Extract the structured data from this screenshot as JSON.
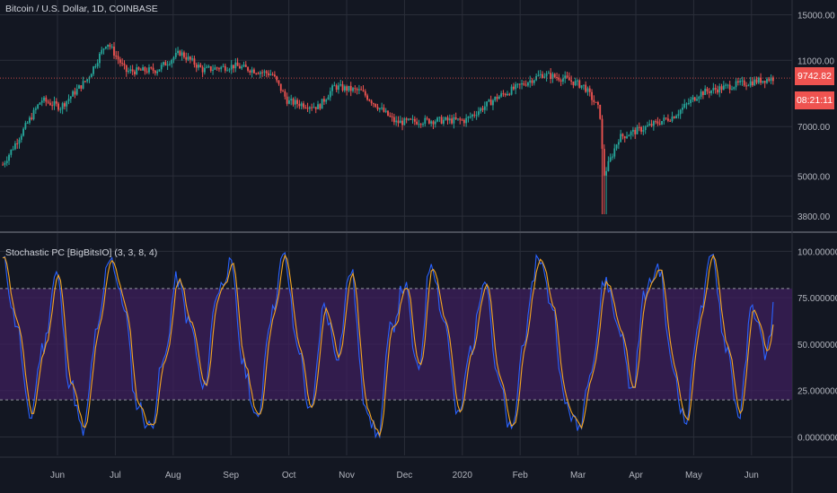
{
  "colors": {
    "background": "#131722",
    "grid": "#2a2e39",
    "text": "#b2b5be",
    "up": "#26a69a",
    "down": "#ef5350",
    "k_line": "#2962ff",
    "d_line": "#f5a623",
    "band_fill": "#3d1f5c",
    "badge": "#ef5350"
  },
  "price_panel": {
    "title": "Bitcoin / U.S. Dollar, 1D, COINBASE",
    "last_price": "9742.82",
    "countdown": "08:21:11"
  },
  "indicator_panel": {
    "title": "Stochastic PC [BigBitsIO] (3, 3, 8, 4)"
  },
  "chart_data": [
    {
      "type": "candlestick",
      "title": "Bitcoin / U.S. Dollar, 1D, COINBASE",
      "y_scale": "log",
      "ylim": [
        3600,
        16000
      ],
      "y_ticks": [
        {
          "value": 15000,
          "label": "15000.00"
        },
        {
          "value": 11000,
          "label": "11000.00"
        },
        {
          "value": 7000,
          "label": "7000.00"
        },
        {
          "value": 5000,
          "label": "5000.00"
        },
        {
          "value": 3800,
          "label": "3800.00"
        }
      ],
      "x_ticks": [
        "Jun",
        "Jul",
        "Aug",
        "Sep",
        "Oct",
        "Nov",
        "Dec",
        "2020",
        "Feb",
        "Mar",
        "Apr",
        "May",
        "Jun"
      ],
      "price_path": [
        {
          "x": 0,
          "y": 5400
        },
        {
          "x": 0.05,
          "y": 8400
        },
        {
          "x": 0.075,
          "y": 8000
        },
        {
          "x": 0.11,
          "y": 9700
        },
        {
          "x": 0.135,
          "y": 12500
        },
        {
          "x": 0.16,
          "y": 10200
        },
        {
          "x": 0.2,
          "y": 10300
        },
        {
          "x": 0.23,
          "y": 11600
        },
        {
          "x": 0.26,
          "y": 10300
        },
        {
          "x": 0.3,
          "y": 10600
        },
        {
          "x": 0.35,
          "y": 10000
        },
        {
          "x": 0.37,
          "y": 8300
        },
        {
          "x": 0.41,
          "y": 8000
        },
        {
          "x": 0.43,
          "y": 9200
        },
        {
          "x": 0.465,
          "y": 8900
        },
        {
          "x": 0.51,
          "y": 7200
        },
        {
          "x": 0.56,
          "y": 7300
        },
        {
          "x": 0.6,
          "y": 7300
        },
        {
          "x": 0.64,
          "y": 8500
        },
        {
          "x": 0.7,
          "y": 10000
        },
        {
          "x": 0.73,
          "y": 9700
        },
        {
          "x": 0.755,
          "y": 9200
        },
        {
          "x": 0.775,
          "y": 7800
        },
        {
          "x": 0.78,
          "y": 5000
        },
        {
          "x": 0.8,
          "y": 6500
        },
        {
          "x": 0.83,
          "y": 6900
        },
        {
          "x": 0.87,
          "y": 7500
        },
        {
          "x": 0.905,
          "y": 8800
        },
        {
          "x": 0.95,
          "y": 9300
        },
        {
          "x": 1,
          "y": 9742.82
        }
      ]
    },
    {
      "type": "line",
      "title": "Stochastic PC [BigBitsIO] (3, 3, 8, 4)",
      "ylim": [
        -7,
        106
      ],
      "y_ticks": [
        {
          "value": 100,
          "label": "100.00000000"
        },
        {
          "value": 75,
          "label": "75.00000000"
        },
        {
          "value": 50,
          "label": "50.00000000"
        },
        {
          "value": 25,
          "label": "25.00000000"
        },
        {
          "value": 0,
          "label": "0.00000000"
        }
      ],
      "band": {
        "upper": 80,
        "lower": 20
      },
      "oscillation_pattern": [
        95,
        62,
        10,
        48,
        88,
        30,
        2,
        55,
        98,
        72,
        18,
        5,
        40,
        85,
        60,
        25,
        78,
        92,
        38,
        8,
        65,
        97,
        50,
        12,
        70,
        45,
        90,
        20,
        0,
        58,
        82,
        35
      ]
    }
  ]
}
